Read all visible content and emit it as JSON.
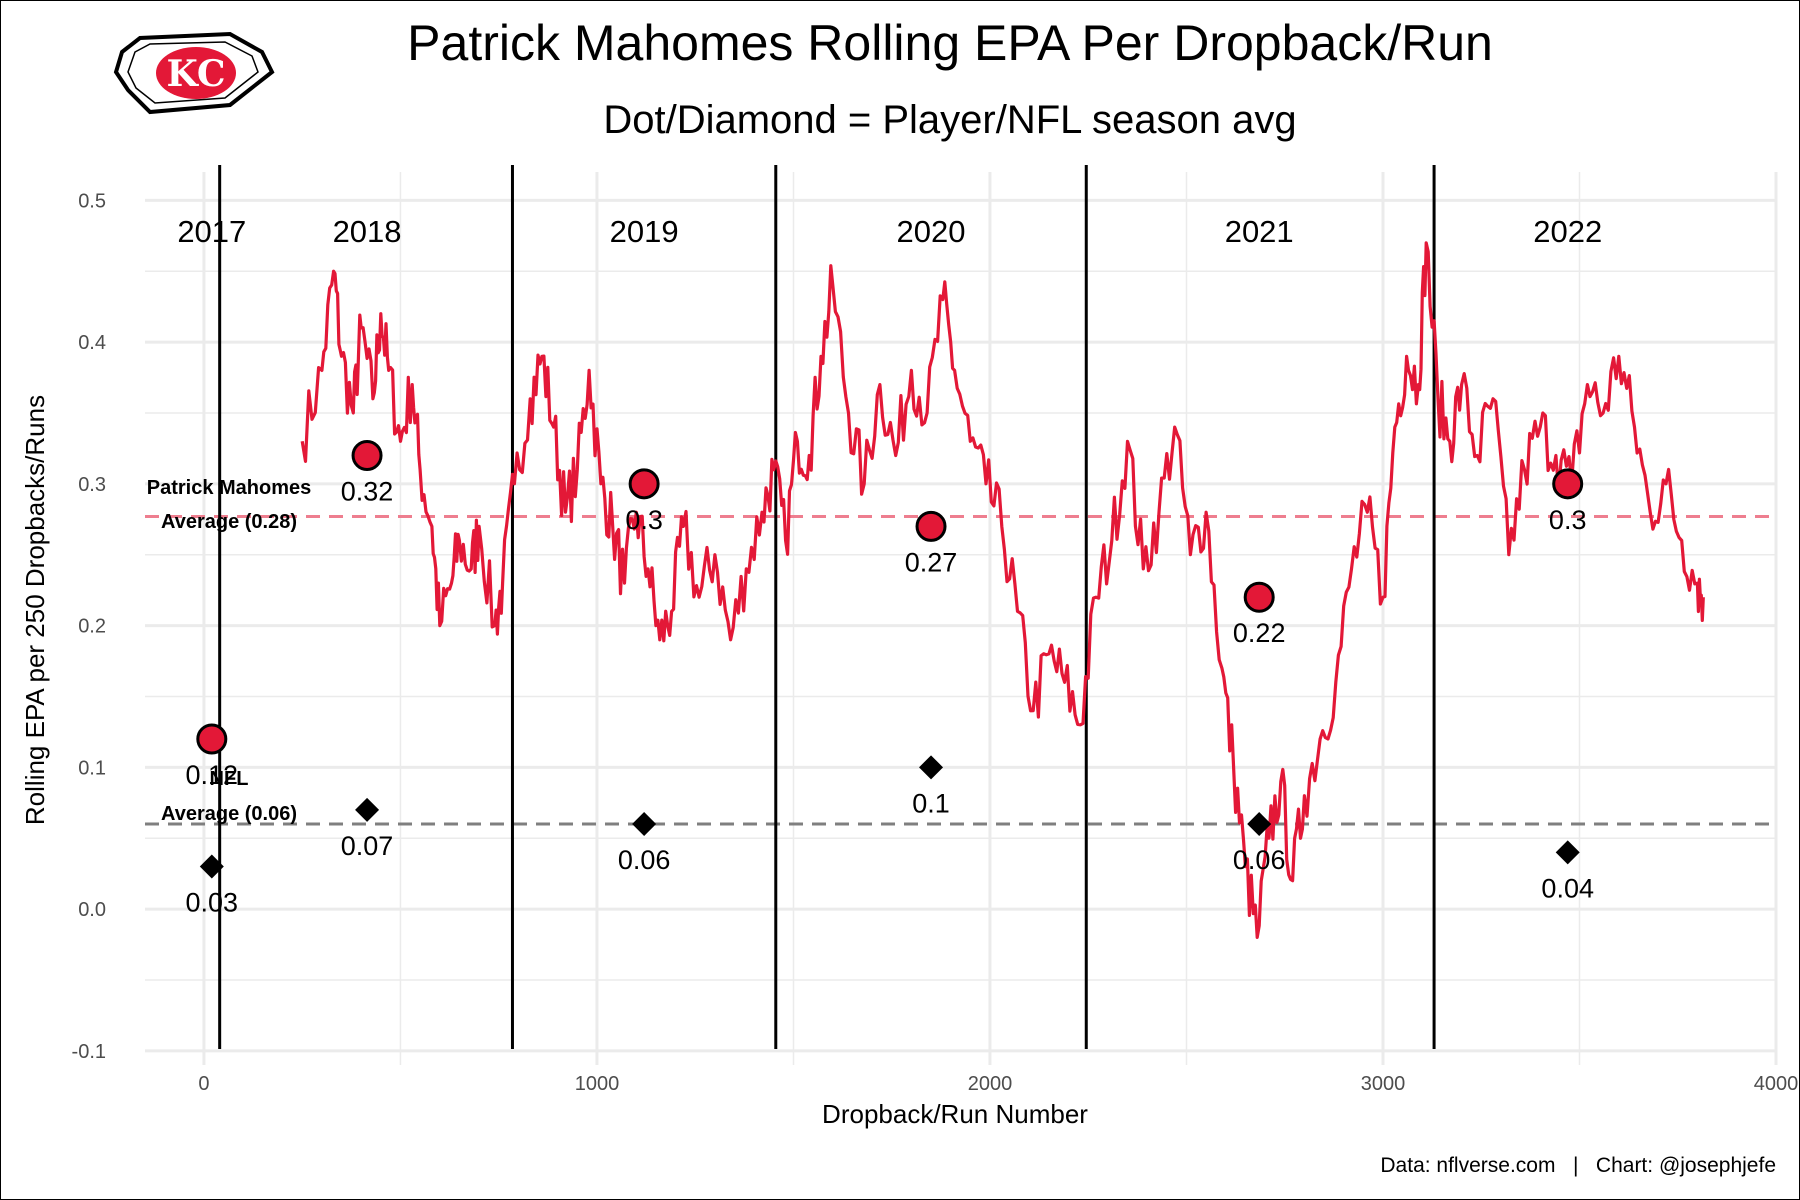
{
  "title": "Patrick Mahomes Rolling EPA Per Dropback/Run",
  "subtitle": "Dot/Diamond = Player/NFL season avg",
  "caption": "Data: nflverse.com   |   Chart: @josephjefe",
  "logo": {
    "text": "KC",
    "color": "#E31837"
  },
  "colors": {
    "player": "#E31837",
    "player_avg_line": "#EE7E8F",
    "nfl_avg_line": "#7f7f7f",
    "grid": "#ebebeb"
  },
  "chart_data": {
    "type": "line",
    "xlabel": "Dropback/Run Number",
    "ylabel": "Rolling EPA per 250 Dropbacks/Runs",
    "xlim": [
      -150,
      4000
    ],
    "ylim": [
      -0.11,
      0.52
    ],
    "x_ticks": [
      0,
      1000,
      2000,
      3000,
      4000
    ],
    "x_tick_labels": [
      "0",
      "1000",
      "2000",
      "3000",
      "4000"
    ],
    "y_ticks": [
      -0.1,
      0.0,
      0.1,
      0.2,
      0.3,
      0.4,
      0.5
    ],
    "y_tick_labels": [
      "-0.1",
      "0.0",
      "0.1",
      "0.2",
      "0.3",
      "0.4",
      "0.5"
    ],
    "grid": true,
    "season_boundaries": [
      40,
      785,
      1455,
      2245,
      3130
    ],
    "seasons": [
      {
        "label": "2017",
        "x": 20
      },
      {
        "label": "2018",
        "x": 415
      },
      {
        "label": "2019",
        "x": 1120
      },
      {
        "label": "2020",
        "x": 1850
      },
      {
        "label": "2021",
        "x": 2685
      },
      {
        "label": "2022",
        "x": 3470
      }
    ],
    "player_season_avg": [
      {
        "season": "2017",
        "x": 20,
        "value": 0.12,
        "label": "0.12"
      },
      {
        "season": "2018",
        "x": 415,
        "value": 0.32,
        "label": "0.32"
      },
      {
        "season": "2019",
        "x": 1120,
        "value": 0.3,
        "label": "0.3"
      },
      {
        "season": "2020",
        "x": 1850,
        "value": 0.27,
        "label": "0.27"
      },
      {
        "season": "2021",
        "x": 2685,
        "value": 0.22,
        "label": "0.22"
      },
      {
        "season": "2022",
        "x": 3470,
        "value": 0.3,
        "label": "0.3"
      }
    ],
    "nfl_season_avg": [
      {
        "season": "2017",
        "x": 20,
        "value": 0.03,
        "label": "0.03"
      },
      {
        "season": "2018",
        "x": 415,
        "value": 0.07,
        "label": "0.07"
      },
      {
        "season": "2019",
        "x": 1120,
        "value": 0.06,
        "label": "0.06"
      },
      {
        "season": "2020",
        "x": 1850,
        "value": 0.1,
        "label": "0.1"
      },
      {
        "season": "2021",
        "x": 2685,
        "value": 0.06,
        "label": "0.06"
      },
      {
        "season": "2022",
        "x": 3470,
        "value": 0.04,
        "label": "0.04"
      }
    ],
    "reference_lines": [
      {
        "name": "player-average",
        "value": 0.277,
        "label_line1": "Patrick Mahomes",
        "label_line2": "Average (0.28)"
      },
      {
        "name": "nfl-average",
        "value": 0.06,
        "label_line1": "NFL",
        "label_line2": "Average (0.06)"
      }
    ],
    "rolling_epa_series": {
      "x": [
        250,
        300,
        330,
        350,
        380,
        400,
        430,
        450,
        470,
        500,
        530,
        550,
        580,
        600,
        630,
        650,
        680,
        700,
        740,
        760,
        790,
        830,
        860,
        890,
        920,
        950,
        980,
        1010,
        1040,
        1070,
        1100,
        1130,
        1160,
        1190,
        1220,
        1260,
        1300,
        1340,
        1380,
        1420,
        1450,
        1480,
        1510,
        1540,
        1570,
        1600,
        1640,
        1680,
        1720,
        1760,
        1800,
        1840,
        1880,
        1910,
        1950,
        1990,
        2030,
        2070,
        2110,
        2150,
        2190,
        2230,
        2270,
        2310,
        2350,
        2390,
        2430,
        2470,
        2510,
        2550,
        2590,
        2620,
        2650,
        2680,
        2710,
        2740,
        2770,
        2800,
        2840,
        2880,
        2920,
        2960,
        3000,
        3030,
        3060,
        3090,
        3110,
        3140,
        3170,
        3200,
        3240,
        3280,
        3320,
        3360,
        3400,
        3440,
        3480,
        3520,
        3560,
        3600,
        3640,
        3680,
        3720,
        3760,
        3800,
        3815
      ],
      "y": [
        0.33,
        0.38,
        0.45,
        0.39,
        0.35,
        0.41,
        0.36,
        0.42,
        0.38,
        0.33,
        0.37,
        0.31,
        0.27,
        0.2,
        0.23,
        0.26,
        0.24,
        0.27,
        0.2,
        0.23,
        0.3,
        0.36,
        0.39,
        0.34,
        0.28,
        0.31,
        0.38,
        0.3,
        0.27,
        0.23,
        0.28,
        0.24,
        0.19,
        0.21,
        0.27,
        0.22,
        0.25,
        0.19,
        0.24,
        0.28,
        0.31,
        0.26,
        0.33,
        0.32,
        0.39,
        0.44,
        0.35,
        0.3,
        0.37,
        0.32,
        0.38,
        0.35,
        0.43,
        0.38,
        0.33,
        0.3,
        0.27,
        0.21,
        0.14,
        0.18,
        0.16,
        0.13,
        0.22,
        0.26,
        0.33,
        0.24,
        0.28,
        0.34,
        0.25,
        0.28,
        0.17,
        0.1,
        0.03,
        -0.02,
        0.05,
        0.09,
        0.02,
        0.08,
        0.12,
        0.16,
        0.24,
        0.28,
        0.22,
        0.34,
        0.39,
        0.37,
        0.47,
        0.36,
        0.33,
        0.37,
        0.32,
        0.36,
        0.25,
        0.31,
        0.34,
        0.32,
        0.3,
        0.37,
        0.35,
        0.39,
        0.34,
        0.28,
        0.3,
        0.26,
        0.23,
        0.22
      ]
    }
  }
}
